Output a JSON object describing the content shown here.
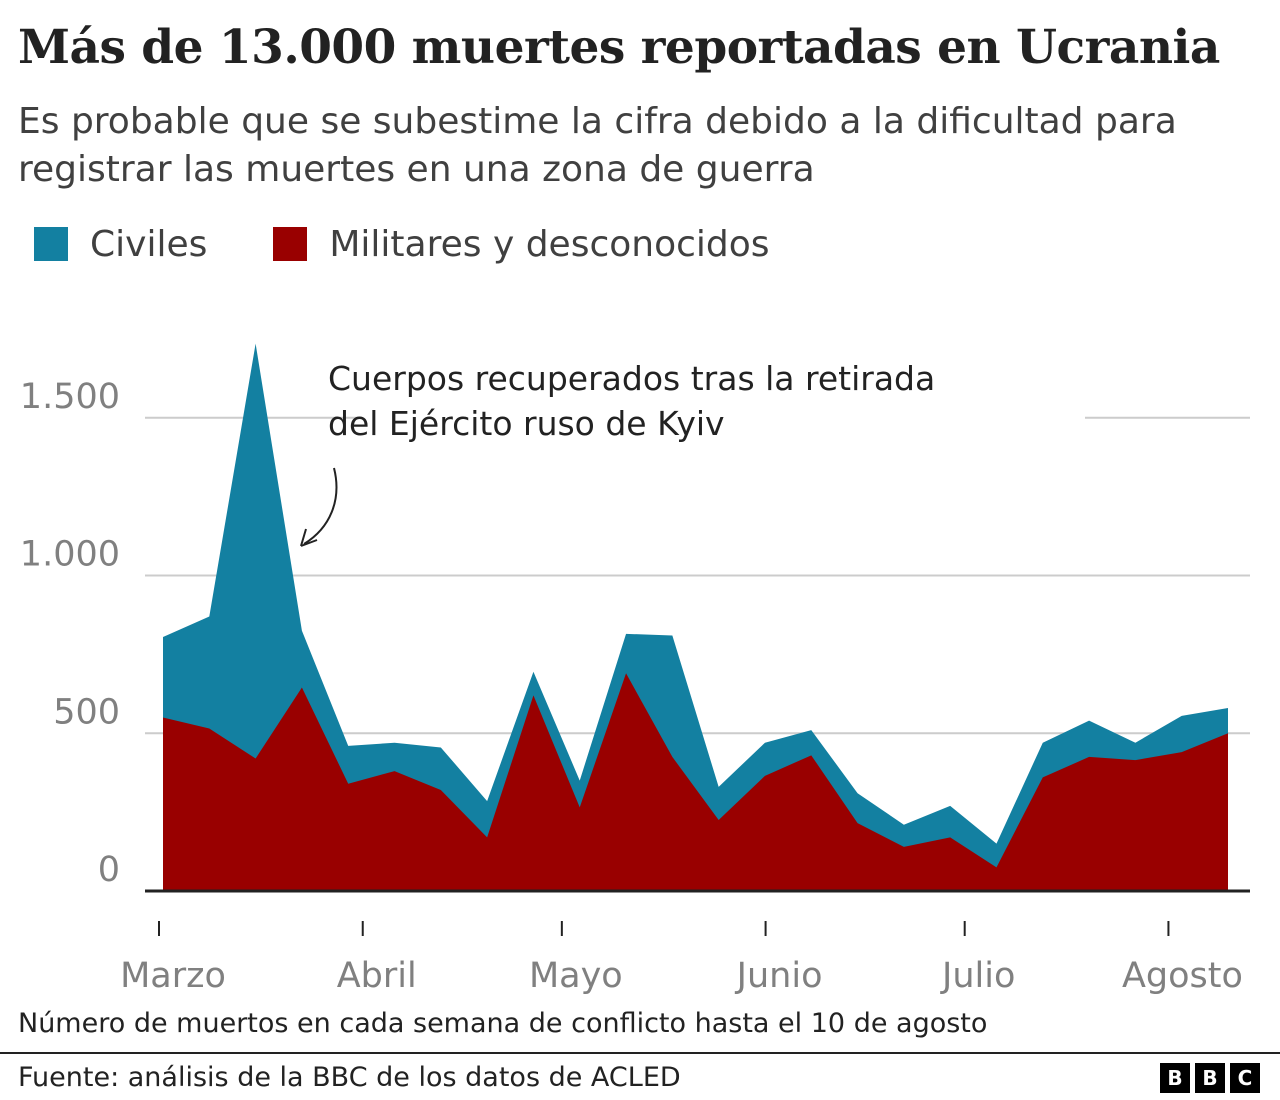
{
  "header": {
    "title": "Más de 13.000 muertes reportadas en Ucrania",
    "subtitle": "Es probable que se subestime la cifra debido a la dificultad para registrar las muertes en una zona de guerra"
  },
  "legend": [
    {
      "label": "Civiles",
      "color": "#1380a1"
    },
    {
      "label": "Militares y desconocidos",
      "color": "#990000"
    }
  ],
  "annotation": {
    "line1": "Cuerpos recuperados tras la retirada",
    "line2": "del Ejército ruso de Kyiv"
  },
  "footer": {
    "note": "Número de muertos en cada semana de conflicto hasta el 10 de agosto",
    "source": "Fuente: análisis de la BBC de los datos de ACLED",
    "logo": [
      "B",
      "B",
      "C"
    ]
  },
  "chart_data": {
    "type": "area",
    "stacked": true,
    "title": "Más de 13.000 muertes reportadas en Ucrania",
    "ylim": [
      0,
      1750
    ],
    "y_ticks": [
      0,
      500,
      1000,
      1500
    ],
    "y_tick_labels": [
      "0",
      "500",
      "1.000",
      "1.500"
    ],
    "x_labels": [
      {
        "label": "Marzo",
        "week": 0
      },
      {
        "label": "Abril",
        "week": 4.4
      },
      {
        "label": "Mayo",
        "week": 8.7
      },
      {
        "label": "Junio",
        "week": 13.1
      },
      {
        "label": "Julio",
        "week": 17.4
      },
      {
        "label": "Agosto",
        "week": 21.8
      }
    ],
    "weeks": 24,
    "series": [
      {
        "name": "Militares y desconocidos",
        "color": "#990000",
        "values": [
          550,
          515,
          420,
          645,
          340,
          380,
          320,
          170,
          620,
          265,
          690,
          425,
          225,
          365,
          430,
          215,
          140,
          170,
          75,
          360,
          425,
          415,
          440,
          500
        ]
      },
      {
        "name": "Civiles",
        "color": "#1380a1",
        "values": [
          255,
          355,
          1315,
          180,
          120,
          90,
          135,
          115,
          75,
          85,
          125,
          385,
          105,
          105,
          80,
          95,
          70,
          100,
          75,
          110,
          115,
          55,
          115,
          80
        ]
      }
    ]
  }
}
